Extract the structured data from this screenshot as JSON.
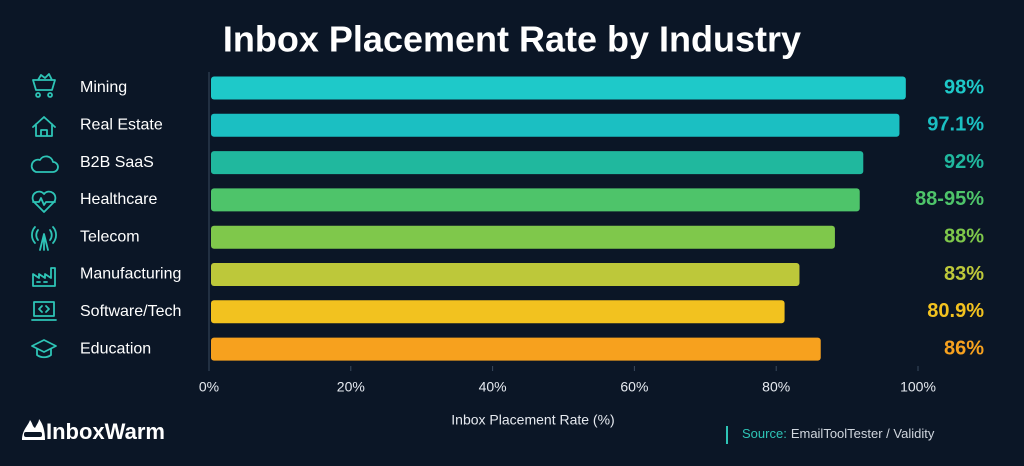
{
  "chart_data": {
    "type": "bar",
    "orientation": "horizontal",
    "title": "Inbox Placement Rate by Industry",
    "categories": [
      "Mining",
      "Real Estate",
      "B2B SaaS",
      "Healthcare",
      "Telecom",
      "Manufacturing",
      "Software/Tech",
      "Education"
    ],
    "values": [
      98,
      97.1,
      92,
      91.5,
      88,
      83,
      80.9,
      86
    ],
    "value_labels": [
      "98%",
      "97.1%",
      "92%",
      "88-95%",
      "88%",
      "83%",
      "80.9%",
      "86%"
    ],
    "colors": [
      "#1ec9c9",
      "#1bbfc2",
      "#20b89e",
      "#4ec46a",
      "#7fc84b",
      "#bdc83a",
      "#f2c21f",
      "#f7a11e"
    ],
    "xlim": [
      0,
      100
    ],
    "xticks": [
      {
        "value": 0,
        "label": "0%"
      },
      {
        "value": 20,
        "label": "20%"
      },
      {
        "value": 40,
        "label": "40%"
      },
      {
        "value": 60,
        "label": "60%"
      },
      {
        "value": 80,
        "label": "80%"
      },
      {
        "value": 100,
        "label": "100%"
      }
    ],
    "xlabel": "Inbox Placement Rate (%)"
  },
  "brand": "InboxWarm",
  "source": {
    "label": "Source:",
    "text": "EmailToolTester / Validity"
  }
}
